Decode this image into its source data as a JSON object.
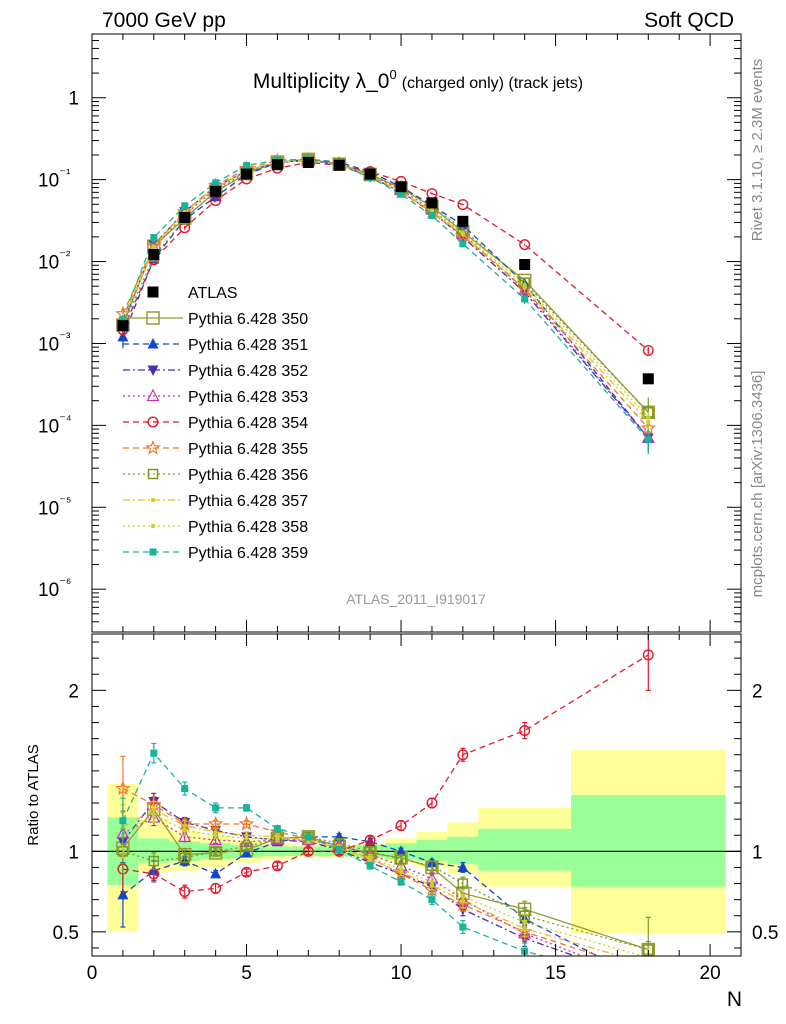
{
  "header": {
    "left": "7000 GeV pp",
    "right": "Soft QCD"
  },
  "side_labels": {
    "rivet": "Rivet 3.1.10, ≥ 2.3M events",
    "mcplots": "mcplots.cern.ch [arXiv:1306.3436]"
  },
  "chart_data": {
    "type": "scatter",
    "title_main": "Multiplicity λ_0",
    "title_sup": "0",
    "title_suffix": "(charged only) (track jets)",
    "analysis_label": "ATLAS_2011_I919017",
    "xlabel": "N",
    "ylabel_ratio": "Ratio to ATLAS",
    "xlim": [
      0,
      21
    ],
    "ylim": [
      3e-07,
      6
    ],
    "yscale": "log",
    "ratio_ylim": [
      0.35,
      2.35
    ],
    "x_ticks": [
      "0",
      "5",
      "10",
      "15",
      "20"
    ],
    "y_ticks_main": [
      "1",
      "10⁻¹",
      "10⁻²",
      "10⁻³",
      "10⁻⁴",
      "10⁻⁵",
      "10⁻⁶"
    ],
    "y_ticks_ratio": [
      "0.5",
      "1",
      "2"
    ],
    "x": [
      1,
      2,
      3,
      4,
      5,
      6,
      7,
      8,
      9,
      10,
      11,
      12,
      14,
      18
    ],
    "bin_edges": [
      0.5,
      1.5,
      2.5,
      3.5,
      4.5,
      5.5,
      6.5,
      7.5,
      8.5,
      9.5,
      10.5,
      11.5,
      12.5,
      15.5,
      20.5
    ],
    "ratio_band_yellow": [
      [
        0.5,
        1.42
      ],
      [
        0.87,
        1.2
      ],
      [
        0.88,
        1.13
      ],
      [
        0.9,
        1.1
      ],
      [
        0.93,
        1.07
      ],
      [
        0.95,
        1.05
      ],
      [
        0.96,
        1.04
      ],
      [
        0.96,
        1.04
      ],
      [
        0.95,
        1.05
      ],
      [
        0.93,
        1.08
      ],
      [
        0.9,
        1.12
      ],
      [
        0.86,
        1.18
      ],
      [
        0.78,
        1.27
      ],
      [
        0.49,
        1.63
      ]
    ],
    "ratio_band_green": [
      [
        0.79,
        1.21
      ],
      [
        0.93,
        1.08
      ],
      [
        0.94,
        1.06
      ],
      [
        0.95,
        1.05
      ],
      [
        0.96,
        1.04
      ],
      [
        0.97,
        1.03
      ],
      [
        0.97,
        1.03
      ],
      [
        0.97,
        1.03
      ],
      [
        0.96,
        1.04
      ],
      [
        0.95,
        1.05
      ],
      [
        0.94,
        1.07
      ],
      [
        0.92,
        1.09
      ],
      [
        0.88,
        1.14
      ],
      [
        0.78,
        1.35
      ]
    ],
    "atlas": {
      "name": "ATLAS",
      "x": [
        1,
        2,
        3,
        4,
        5,
        6,
        7,
        8,
        9,
        10,
        11,
        12,
        14,
        18
      ],
      "y": [
        0.00165,
        0.0122,
        0.0345,
        0.072,
        0.117,
        0.152,
        0.162,
        0.15,
        0.117,
        0.082,
        0.052,
        0.031,
        0.0092,
        0.00037
      ]
    },
    "series": [
      {
        "name": "Pythia 6.428 350",
        "color": "#999933",
        "dash": "solid",
        "marker": "square-open",
        "ratio": [
          1.02,
          1.26,
          0.98,
          0.99,
          1.01,
          1.08,
          1.09,
          1.03,
          0.99,
          0.96,
          0.9,
          0.74,
          0.64,
          0.39
        ],
        "ratio_err": [
          0.05,
          0.04,
          0.03,
          0.02,
          0.02,
          0.02,
          0.02,
          0.02,
          0.02,
          0.02,
          0.03,
          0.04,
          0.05,
          0.05
        ]
      },
      {
        "name": "Pythia 6.428 351",
        "color": "#1446c8",
        "dash": "dashed",
        "marker": "triangle-up",
        "ratio": [
          0.73,
          0.88,
          0.94,
          0.86,
          0.99,
          1.06,
          1.09,
          1.09,
          1.06,
          1.0,
          0.93,
          0.9,
          0.58,
          0.19
        ],
        "ratio_err": [
          0.2,
          0.06,
          0.03,
          0.02,
          0.02,
          0.02,
          0.02,
          0.02,
          0.02,
          0.02,
          0.02,
          0.03,
          0.05,
          0.06
        ]
      },
      {
        "name": "Pythia 6.428 352",
        "color": "#4b2fb4",
        "dash": "dashdot",
        "marker": "triangle-down",
        "ratio": [
          1.06,
          1.31,
          1.18,
          1.13,
          1.09,
          1.07,
          1.06,
          1.01,
          0.93,
          0.86,
          0.78,
          0.64,
          0.46,
          0.19
        ],
        "ratio_err": [
          0.14,
          0.05,
          0.03,
          0.02,
          0.02,
          0.02,
          0.02,
          0.02,
          0.02,
          0.02,
          0.03,
          0.04,
          0.05,
          0.06
        ]
      },
      {
        "name": "Pythia 6.428 353",
        "color": "#c030c0",
        "dash": "dotted",
        "marker": "triangle-open",
        "ratio": [
          1.11,
          1.21,
          1.09,
          1.07,
          1.06,
          1.07,
          1.07,
          1.04,
          0.98,
          0.91,
          0.83,
          0.7,
          0.49,
          0.19
        ],
        "ratio_err": [
          0.14,
          0.05,
          0.03,
          0.02,
          0.02,
          0.02,
          0.02,
          0.02,
          0.02,
          0.02,
          0.03,
          0.04,
          0.05,
          0.06
        ]
      },
      {
        "name": "Pythia 6.428 354",
        "color": "#e0182c",
        "dash": "dashed",
        "marker": "circle-open",
        "ratio": [
          0.89,
          0.86,
          0.75,
          0.77,
          0.87,
          0.91,
          1.0,
          1.0,
          1.07,
          1.16,
          1.3,
          1.6,
          1.75,
          2.22
        ],
        "ratio_err": [
          0.14,
          0.05,
          0.04,
          0.03,
          0.02,
          0.02,
          0.02,
          0.02,
          0.02,
          0.03,
          0.03,
          0.04,
          0.05,
          0.22
        ]
      },
      {
        "name": "Pythia 6.428 355",
        "color": "#f07828",
        "dash": "dashed",
        "marker": "star",
        "ratio": [
          1.39,
          1.29,
          1.17,
          1.17,
          1.17,
          1.12,
          1.08,
          1.02,
          0.96,
          0.86,
          0.76,
          0.67,
          0.5,
          0.25
        ],
        "ratio_err": [
          0.2,
          0.05,
          0.03,
          0.02,
          0.02,
          0.02,
          0.02,
          0.02,
          0.02,
          0.02,
          0.03,
          0.04,
          0.05,
          0.06
        ]
      },
      {
        "name": "Pythia 6.428 356",
        "color": "#7a9a1e",
        "dash": "dotted",
        "marker": "square-open-small",
        "ratio": [
          1.0,
          0.94,
          0.96,
          1.0,
          1.03,
          1.08,
          1.09,
          1.05,
          1.0,
          0.95,
          0.91,
          0.8,
          0.6,
          0.39
        ],
        "ratio_err": [
          0.14,
          0.05,
          0.03,
          0.02,
          0.02,
          0.02,
          0.02,
          0.02,
          0.02,
          0.02,
          0.03,
          0.04,
          0.05,
          0.2
        ]
      },
      {
        "name": "Pythia 6.428 357",
        "color": "#e8c21e",
        "dash": "dashdot",
        "marker": "dot",
        "ratio": [
          1.15,
          1.26,
          1.16,
          1.12,
          1.1,
          1.09,
          1.07,
          1.02,
          0.95,
          0.87,
          0.79,
          0.69,
          0.52,
          0.3
        ],
        "ratio_err": [
          0.14,
          0.05,
          0.03,
          0.02,
          0.02,
          0.02,
          0.02,
          0.02,
          0.02,
          0.02,
          0.03,
          0.04,
          0.05,
          0.06
        ]
      },
      {
        "name": "Pythia 6.428 358",
        "color": "#c8d22e",
        "dash": "dotted",
        "marker": "dot",
        "ratio": [
          1.1,
          1.23,
          1.13,
          1.1,
          1.08,
          1.08,
          1.07,
          1.02,
          0.96,
          0.89,
          0.81,
          0.72,
          0.56,
          0.34
        ],
        "ratio_err": [
          0.14,
          0.05,
          0.03,
          0.02,
          0.02,
          0.02,
          0.02,
          0.02,
          0.02,
          0.02,
          0.03,
          0.04,
          0.05,
          0.06
        ]
      },
      {
        "name": "Pythia 6.428 359",
        "color": "#19b49a",
        "dash": "dashed",
        "marker": "square-filled-small",
        "ratio": [
          1.19,
          1.61,
          1.39,
          1.27,
          1.27,
          1.14,
          1.09,
          1.01,
          0.91,
          0.81,
          0.7,
          0.53,
          0.38,
          0.18
        ],
        "ratio_err": [
          0.14,
          0.06,
          0.04,
          0.03,
          0.02,
          0.02,
          0.02,
          0.02,
          0.02,
          0.02,
          0.03,
          0.04,
          0.05,
          0.06
        ]
      }
    ],
    "grid": false,
    "legend_position": "left-center"
  }
}
